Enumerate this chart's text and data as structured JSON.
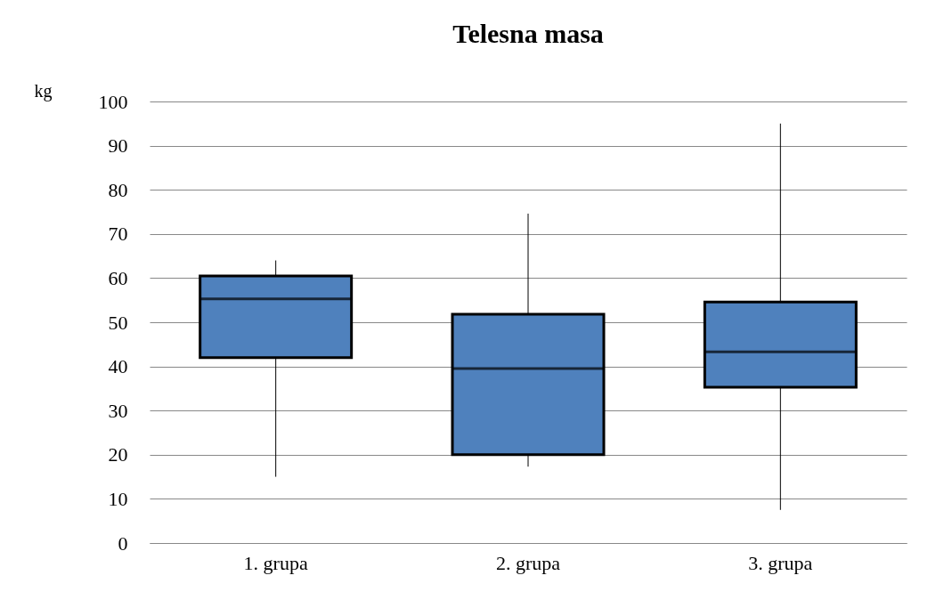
{
  "chart_data": {
    "type": "box",
    "title": "Telesna masa",
    "ylabel": "kg",
    "categories": [
      "1. grupa",
      "2. grupa",
      "3. grupa"
    ],
    "series": [
      {
        "color": "#4f81bd",
        "boxes": [
          {
            "low": 15,
            "q1": 42,
            "median": 55.3,
            "q3": 60.5,
            "high": 64
          },
          {
            "low": 17.3,
            "q1": 20,
            "median": 39.5,
            "q3": 51.8,
            "high": 74.6
          },
          {
            "low": 7.5,
            "q1": 35.3,
            "median": 43.3,
            "q3": 54.6,
            "high": 95
          }
        ]
      }
    ],
    "ylim": [
      0,
      100
    ],
    "yticks": [
      0,
      10,
      20,
      30,
      40,
      50,
      60,
      70,
      80,
      90,
      100
    ],
    "grid": "y"
  }
}
